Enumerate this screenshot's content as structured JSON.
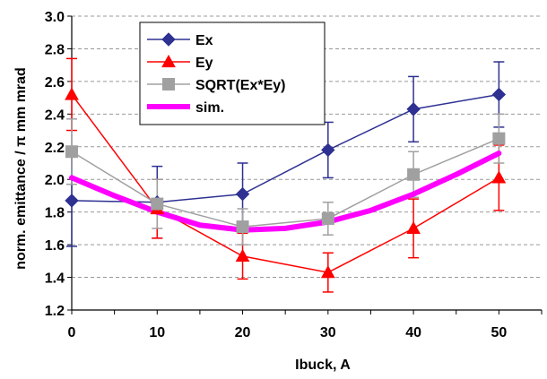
{
  "chart_data": {
    "type": "line",
    "xlabel": "Ibuck, A",
    "ylabel": "norm. emittance / π mm mrad",
    "xlim": [
      0,
      55
    ],
    "ylim": [
      1.2,
      3.0
    ],
    "x_ticks": [
      0,
      10,
      20,
      30,
      40,
      50
    ],
    "y_ticks": [
      1.2,
      1.4,
      1.6,
      1.8,
      2.0,
      2.2,
      2.4,
      2.6,
      2.8,
      3.0
    ],
    "y_tick_labels": [
      "1.2",
      "1.4",
      "1.6",
      "1.8",
      "2.0",
      "2.2",
      "2.4",
      "2.6",
      "2.8",
      "3.0"
    ],
    "grid": "horizontal",
    "legend_position": "top-left",
    "series": [
      {
        "name": "Ex",
        "color": "#2E3192",
        "marker": "diamond",
        "x": [
          0,
          10,
          20,
          30,
          40,
          50
        ],
        "y": [
          1.87,
          1.86,
          1.91,
          2.18,
          2.43,
          2.52
        ],
        "err": [
          0.28,
          0.22,
          0.19,
          0.17,
          0.2,
          0.2
        ]
      },
      {
        "name": "Ey",
        "color": "#FF0000",
        "marker": "triangle",
        "x": [
          0,
          10,
          20,
          30,
          40,
          50
        ],
        "y": [
          2.52,
          1.82,
          1.53,
          1.43,
          1.7,
          2.01
        ],
        "err": [
          0.22,
          0.18,
          0.14,
          0.12,
          0.18,
          0.2
        ]
      },
      {
        "name": "SQRT(Ex*Ey)",
        "color": "#A0A0A0",
        "marker": "square",
        "x": [
          0,
          10,
          20,
          30,
          40,
          50
        ],
        "y": [
          2.17,
          1.85,
          1.71,
          1.76,
          2.03,
          2.25
        ],
        "err": [
          0.2,
          0.15,
          0.11,
          0.1,
          0.14,
          0.15
        ]
      },
      {
        "name": "sim.",
        "color": "#FF00FF",
        "marker": "none",
        "x": [
          0,
          5,
          10,
          15,
          20,
          25,
          30,
          35,
          40,
          45,
          50
        ],
        "y": [
          2.01,
          1.9,
          1.8,
          1.72,
          1.69,
          1.7,
          1.74,
          1.81,
          1.91,
          2.03,
          2.16
        ]
      }
    ]
  }
}
